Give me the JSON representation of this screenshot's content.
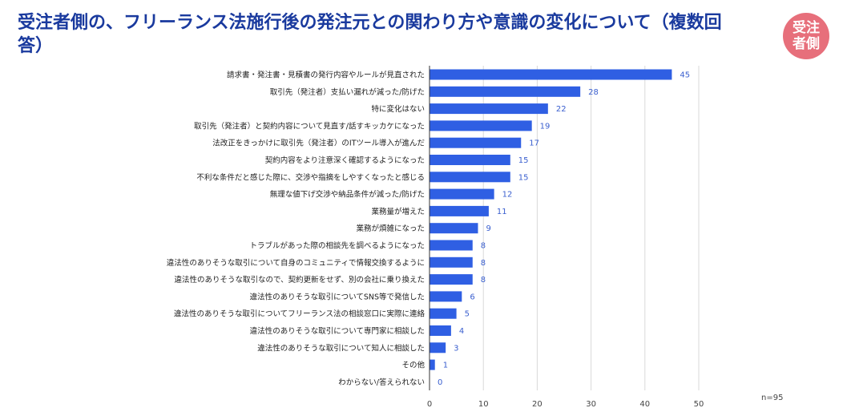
{
  "title": "受注者側の、フリーランス法施行後の発注元との関わり方や意識の変化について（複数回答）",
  "badge": "受注者側",
  "note": "n=95",
  "colors": {
    "bar": "#2f5fe3",
    "title": "#1a3a9e",
    "badge": "#e76f7b",
    "grid": "#d9d9d9",
    "value_label": "#3a5fcf"
  },
  "chart_data": {
    "type": "bar",
    "orientation": "horizontal",
    "title": "受注者側の、フリーランス法施行後の発注元との関わり方や意識の変化について（複数回答）",
    "xlabel": "",
    "ylabel": "",
    "xlim": [
      0,
      50
    ],
    "xticks": [
      0,
      10,
      20,
      30,
      40,
      50
    ],
    "grid": true,
    "categories": [
      "請求書・発注書・見積書の発行内容やルールが見直された",
      "取引先（発注者）支払い漏れが減った/防げた",
      "特に変化はない",
      "取引先（発注者）と契約内容について見直す/話すキッカケになった",
      "法改正をきっかけに取引先（発注者）のITツール導入が進んだ",
      "契約内容をより注意深く確認するようになった",
      "不利な条件だと感じた際に、交渉や指摘をしやすくなったと感じる",
      "無理な値下げ交渉や納品条件が減った/防げた",
      "業務量が増えた",
      "業務が煩雑になった",
      "トラブルがあった際の相談先を調べるようになった",
      "違法性のありそうな取引について自身のコミュニティで情報交換するように",
      "違法性のありそうな取引なので、契約更新をせず、別の会社に乗り換えた",
      "違法性のありそうな取引についてSNS等で発信した",
      "違法性のありそうな取引についてフリーランス法の相談窓口に実際に連絡",
      "違法性のありそうな取引について専門家に相談した",
      "違法性のありそうな取引について知人に相談した",
      "その他",
      "わからない/答えられない"
    ],
    "values": [
      45,
      28,
      22,
      19,
      17,
      15,
      15,
      12,
      11,
      9,
      8,
      8,
      8,
      6,
      5,
      4,
      3,
      1,
      0
    ]
  }
}
